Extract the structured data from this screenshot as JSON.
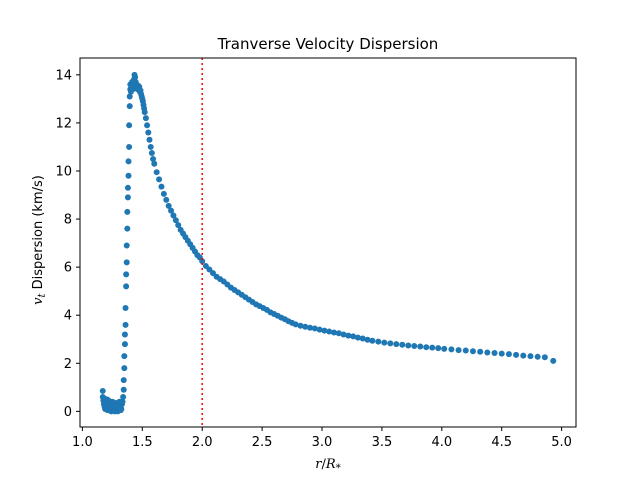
{
  "chart_data": {
    "type": "scatter",
    "title": "Tranverse Velocity Dispersion",
    "xlabel": "r/R*",
    "ylabel": "vt Dispersion (km/s)",
    "xlim": [
      0.98,
      5.12
    ],
    "ylim": [
      -0.65,
      14.7
    ],
    "xticks": [
      1.0,
      1.5,
      2.0,
      2.5,
      3.0,
      3.5,
      4.0,
      4.5,
      5.0
    ],
    "xtick_labels": [
      "1.0",
      "1.5",
      "2.0",
      "2.5",
      "3.0",
      "3.5",
      "4.0",
      "4.5",
      "5.0"
    ],
    "yticks": [
      0,
      2,
      4,
      6,
      8,
      10,
      12,
      14
    ],
    "ytick_labels": [
      "0",
      "2",
      "4",
      "6",
      "8",
      "10",
      "12",
      "14"
    ],
    "grid": false,
    "marker_color": "#1f77b4",
    "reference_line": {
      "x": 2.0,
      "color": "#ff0000",
      "style": "dotted"
    },
    "series": [
      {
        "points": [
          [
            1.17,
            0.85
          ],
          [
            1.17,
            0.6
          ],
          [
            1.175,
            0.45
          ],
          [
            1.18,
            0.3
          ],
          [
            1.18,
            0.55
          ],
          [
            1.185,
            0.2
          ],
          [
            1.19,
            0.4
          ],
          [
            1.19,
            0.1
          ],
          [
            1.2,
            0.35
          ],
          [
            1.2,
            0.15
          ],
          [
            1.205,
            0.5
          ],
          [
            1.21,
            0.25
          ],
          [
            1.21,
            0.05
          ],
          [
            1.215,
            0.3
          ],
          [
            1.22,
            0.45
          ],
          [
            1.22,
            0.1
          ],
          [
            1.225,
            0.2
          ],
          [
            1.23,
            0.35
          ],
          [
            1.23,
            0.05
          ],
          [
            1.235,
            0.15
          ],
          [
            1.24,
            0.3
          ],
          [
            1.24,
            0.0
          ],
          [
            1.245,
            0.2
          ],
          [
            1.25,
            0.4
          ],
          [
            1.25,
            0.1
          ],
          [
            1.255,
            0.25
          ],
          [
            1.26,
            0.05
          ],
          [
            1.26,
            0.35
          ],
          [
            1.265,
            0.15
          ],
          [
            1.27,
            0.3
          ],
          [
            1.27,
            0.0
          ],
          [
            1.275,
            0.2
          ],
          [
            1.28,
            0.1
          ],
          [
            1.28,
            0.35
          ],
          [
            1.285,
            0.05
          ],
          [
            1.29,
            0.25
          ],
          [
            1.29,
            0.15
          ],
          [
            1.295,
            0.0
          ],
          [
            1.3,
            0.3
          ],
          [
            1.3,
            0.1
          ],
          [
            1.305,
            0.2
          ],
          [
            1.31,
            0.05
          ],
          [
            1.31,
            0.4
          ],
          [
            1.315,
            0.15
          ],
          [
            1.32,
            0.25
          ],
          [
            1.32,
            0.05
          ],
          [
            1.325,
            0.1
          ],
          [
            1.33,
            0.3
          ],
          [
            1.335,
            0.4
          ],
          [
            1.34,
            0.6
          ],
          [
            1.345,
            0.9
          ],
          [
            1.345,
            1.3
          ],
          [
            1.35,
            1.8
          ],
          [
            1.35,
            2.3
          ],
          [
            1.355,
            2.8
          ],
          [
            1.355,
            3.2
          ],
          [
            1.36,
            3.6
          ],
          [
            1.36,
            4.3
          ],
          [
            1.365,
            5.2
          ],
          [
            1.365,
            5.7
          ],
          [
            1.37,
            6.2
          ],
          [
            1.37,
            6.9
          ],
          [
            1.375,
            7.6
          ],
          [
            1.375,
            8.3
          ],
          [
            1.38,
            8.9
          ],
          [
            1.38,
            9.3
          ],
          [
            1.385,
            9.8
          ],
          [
            1.385,
            10.4
          ],
          [
            1.39,
            11.0
          ],
          [
            1.39,
            11.9
          ],
          [
            1.395,
            12.7
          ],
          [
            1.395,
            13.1
          ],
          [
            1.4,
            13.4
          ],
          [
            1.4,
            13.6
          ],
          [
            1.405,
            13.3
          ],
          [
            1.41,
            13.5
          ],
          [
            1.415,
            13.7
          ],
          [
            1.42,
            13.4
          ],
          [
            1.425,
            13.6
          ],
          [
            1.43,
            13.8
          ],
          [
            1.435,
            14.0
          ],
          [
            1.44,
            13.9
          ],
          [
            1.445,
            13.7
          ],
          [
            1.45,
            13.6
          ],
          [
            1.455,
            13.5
          ],
          [
            1.46,
            13.4
          ],
          [
            1.465,
            13.55
          ],
          [
            1.47,
            13.4
          ],
          [
            1.475,
            13.5
          ],
          [
            1.48,
            13.3
          ],
          [
            1.485,
            13.35
          ],
          [
            1.49,
            13.2
          ],
          [
            1.495,
            13.1
          ],
          [
            1.5,
            13.0
          ],
          [
            1.505,
            12.9
          ],
          [
            1.51,
            12.75
          ],
          [
            1.515,
            12.6
          ],
          [
            1.52,
            12.45
          ],
          [
            1.53,
            12.2
          ],
          [
            1.54,
            11.9
          ],
          [
            1.55,
            11.6
          ],
          [
            1.56,
            11.3
          ],
          [
            1.57,
            11.0
          ],
          [
            1.58,
            10.75
          ],
          [
            1.59,
            10.5
          ],
          [
            1.6,
            10.3
          ],
          [
            1.62,
            9.95
          ],
          [
            1.64,
            9.65
          ],
          [
            1.66,
            9.35
          ],
          [
            1.68,
            9.05
          ],
          [
            1.7,
            8.8
          ],
          [
            1.72,
            8.55
          ],
          [
            1.74,
            8.35
          ],
          [
            1.76,
            8.15
          ],
          [
            1.78,
            7.95
          ],
          [
            1.8,
            7.75
          ],
          [
            1.82,
            7.55
          ],
          [
            1.84,
            7.4
          ],
          [
            1.86,
            7.25
          ],
          [
            1.88,
            7.1
          ],
          [
            1.9,
            6.95
          ],
          [
            1.92,
            6.8
          ],
          [
            1.94,
            6.65
          ],
          [
            1.96,
            6.5
          ],
          [
            1.98,
            6.4
          ],
          [
            2.0,
            6.25
          ],
          [
            2.03,
            6.05
          ],
          [
            2.06,
            5.9
          ],
          [
            2.09,
            5.75
          ],
          [
            2.12,
            5.6
          ],
          [
            2.15,
            5.5
          ],
          [
            2.18,
            5.4
          ],
          [
            2.21,
            5.28
          ],
          [
            2.24,
            5.15
          ],
          [
            2.27,
            5.05
          ],
          [
            2.3,
            4.95
          ],
          [
            2.33,
            4.85
          ],
          [
            2.36,
            4.75
          ],
          [
            2.39,
            4.65
          ],
          [
            2.42,
            4.55
          ],
          [
            2.45,
            4.45
          ],
          [
            2.48,
            4.38
          ],
          [
            2.51,
            4.3
          ],
          [
            2.54,
            4.22
          ],
          [
            2.57,
            4.12
          ],
          [
            2.6,
            4.05
          ],
          [
            2.63,
            3.98
          ],
          [
            2.66,
            3.9
          ],
          [
            2.69,
            3.83
          ],
          [
            2.72,
            3.75
          ],
          [
            2.75,
            3.68
          ],
          [
            2.78,
            3.62
          ],
          [
            2.82,
            3.56
          ],
          [
            2.86,
            3.52
          ],
          [
            2.9,
            3.48
          ],
          [
            2.94,
            3.45
          ],
          [
            2.98,
            3.4
          ],
          [
            3.02,
            3.36
          ],
          [
            3.06,
            3.32
          ],
          [
            3.1,
            3.28
          ],
          [
            3.14,
            3.25
          ],
          [
            3.18,
            3.2
          ],
          [
            3.22,
            3.15
          ],
          [
            3.26,
            3.12
          ],
          [
            3.3,
            3.07
          ],
          [
            3.34,
            3.03
          ],
          [
            3.38,
            2.98
          ],
          [
            3.42,
            2.94
          ],
          [
            3.47,
            2.9
          ],
          [
            3.52,
            2.86
          ],
          [
            3.57,
            2.83
          ],
          [
            3.62,
            2.8
          ],
          [
            3.67,
            2.77
          ],
          [
            3.72,
            2.74
          ],
          [
            3.77,
            2.72
          ],
          [
            3.82,
            2.7
          ],
          [
            3.87,
            2.67
          ],
          [
            3.92,
            2.65
          ],
          [
            3.97,
            2.63
          ],
          [
            4.02,
            2.6
          ],
          [
            4.08,
            2.58
          ],
          [
            4.14,
            2.55
          ],
          [
            4.2,
            2.53
          ],
          [
            4.26,
            2.5
          ],
          [
            4.32,
            2.48
          ],
          [
            4.38,
            2.45
          ],
          [
            4.44,
            2.43
          ],
          [
            4.5,
            2.4
          ],
          [
            4.56,
            2.38
          ],
          [
            4.62,
            2.35
          ],
          [
            4.68,
            2.32
          ],
          [
            4.74,
            2.3
          ],
          [
            4.8,
            2.27
          ],
          [
            4.86,
            2.25
          ],
          [
            4.93,
            2.1
          ]
        ]
      }
    ]
  }
}
